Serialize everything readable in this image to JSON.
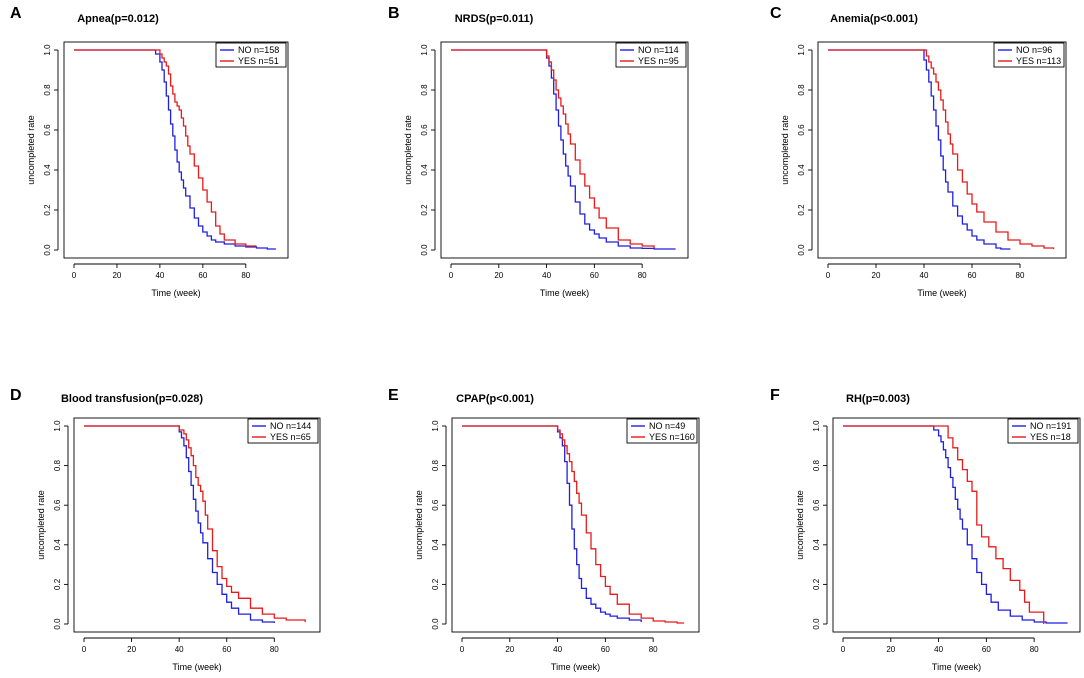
{
  "figure": {
    "x_axis_label": "Time (week)",
    "y_axis_label": "uncompleted rate"
  },
  "series_colors": {
    "NO": "#1f1fe0",
    "YES": "#e81a1a"
  },
  "chart_data": [
    {
      "panel": "A",
      "type": "line",
      "title": "Apnea(p=0.012)",
      "xlabel": "Time (week)",
      "ylabel": "uncompleted rate",
      "xlim": [
        0,
        95
      ],
      "ylim": [
        0,
        1.0
      ],
      "xticks": [
        0,
        20,
        40,
        60,
        80
      ],
      "yticks": [
        0.0,
        0.2,
        0.4,
        0.6,
        0.8,
        1.0
      ],
      "legend_position": "top-right",
      "series": [
        {
          "name": "NO n=158",
          "group": "NO",
          "x": [
            0,
            36,
            38,
            40,
            41,
            42,
            43,
            44,
            45,
            46,
            47,
            48,
            49,
            50,
            51,
            52,
            54,
            56,
            58,
            60,
            62,
            64,
            66,
            70,
            75,
            80,
            85,
            90,
            94
          ],
          "y": [
            1.0,
            1.0,
            0.98,
            0.94,
            0.9,
            0.84,
            0.77,
            0.7,
            0.63,
            0.57,
            0.5,
            0.44,
            0.39,
            0.35,
            0.31,
            0.27,
            0.21,
            0.16,
            0.12,
            0.09,
            0.07,
            0.05,
            0.04,
            0.03,
            0.02,
            0.015,
            0.01,
            0.005,
            0.005
          ]
        },
        {
          "name": "YES n=51",
          "group": "YES",
          "x": [
            0,
            38,
            40,
            41,
            42,
            43,
            44,
            45,
            46,
            47,
            48,
            49,
            50,
            51,
            52,
            53,
            54,
            56,
            58,
            60,
            62,
            64,
            66,
            68,
            70,
            75,
            80,
            85
          ],
          "y": [
            1.0,
            1.0,
            0.98,
            0.96,
            0.94,
            0.92,
            0.88,
            0.82,
            0.78,
            0.74,
            0.72,
            0.7,
            0.66,
            0.62,
            0.57,
            0.52,
            0.48,
            0.42,
            0.36,
            0.3,
            0.24,
            0.19,
            0.12,
            0.08,
            0.05,
            0.03,
            0.02,
            0.02
          ]
        }
      ]
    },
    {
      "panel": "B",
      "type": "line",
      "title": "NRDS(p=0.011)",
      "xlabel": "Time (week)",
      "ylabel": "uncompleted rate",
      "xlim": [
        0,
        95
      ],
      "ylim": [
        0,
        1.0
      ],
      "xticks": [
        0,
        20,
        40,
        60,
        80
      ],
      "yticks": [
        0.0,
        0.2,
        0.4,
        0.6,
        0.8,
        1.0
      ],
      "legend_position": "top-right",
      "series": [
        {
          "name": "NO n=114",
          "group": "NO",
          "x": [
            0,
            38,
            40,
            41,
            42,
            43,
            44,
            45,
            46,
            47,
            48,
            49,
            50,
            52,
            54,
            56,
            58,
            60,
            62,
            65,
            70,
            75,
            80,
            85,
            90,
            94
          ],
          "y": [
            1.0,
            1.0,
            0.96,
            0.92,
            0.86,
            0.78,
            0.7,
            0.62,
            0.55,
            0.48,
            0.42,
            0.37,
            0.32,
            0.24,
            0.18,
            0.13,
            0.1,
            0.08,
            0.06,
            0.04,
            0.02,
            0.01,
            0.008,
            0.005,
            0.005,
            0.005
          ]
        },
        {
          "name": "YES n=95",
          "group": "YES",
          "x": [
            0,
            38,
            40,
            41,
            42,
            43,
            44,
            45,
            46,
            47,
            48,
            49,
            50,
            52,
            54,
            56,
            58,
            60,
            62,
            65,
            70,
            75,
            80,
            85
          ],
          "y": [
            1.0,
            1.0,
            0.97,
            0.94,
            0.9,
            0.85,
            0.8,
            0.76,
            0.72,
            0.68,
            0.63,
            0.58,
            0.53,
            0.45,
            0.38,
            0.32,
            0.26,
            0.21,
            0.16,
            0.11,
            0.05,
            0.03,
            0.02,
            0.01
          ]
        }
      ]
    },
    {
      "panel": "C",
      "type": "line",
      "title": "Anemia(p<0.001)",
      "xlabel": "Time (week)",
      "ylabel": "uncompleted rate",
      "xlim": [
        0,
        95
      ],
      "ylim": [
        0,
        1.0
      ],
      "xticks": [
        0,
        20,
        40,
        60,
        80
      ],
      "yticks": [
        0.0,
        0.2,
        0.4,
        0.6,
        0.8,
        1.0
      ],
      "legend_position": "top-right",
      "series": [
        {
          "name": "NO n=96",
          "group": "NO",
          "x": [
            0,
            38,
            40,
            41,
            42,
            43,
            44,
            45,
            46,
            47,
            48,
            49,
            50,
            52,
            54,
            56,
            58,
            60,
            62,
            65,
            70,
            72,
            76
          ],
          "y": [
            1.0,
            1.0,
            0.95,
            0.9,
            0.84,
            0.77,
            0.7,
            0.62,
            0.55,
            0.47,
            0.4,
            0.34,
            0.29,
            0.22,
            0.17,
            0.13,
            0.1,
            0.07,
            0.05,
            0.03,
            0.01,
            0.005,
            0.005
          ]
        },
        {
          "name": "YES n=113",
          "group": "YES",
          "x": [
            0,
            40,
            41,
            42,
            43,
            44,
            45,
            46,
            47,
            48,
            49,
            50,
            51,
            52,
            54,
            56,
            58,
            60,
            62,
            65,
            70,
            75,
            80,
            85,
            90,
            94
          ],
          "y": [
            1.0,
            1.0,
            0.97,
            0.94,
            0.91,
            0.88,
            0.84,
            0.8,
            0.75,
            0.7,
            0.64,
            0.58,
            0.53,
            0.48,
            0.4,
            0.34,
            0.28,
            0.23,
            0.19,
            0.14,
            0.09,
            0.05,
            0.03,
            0.02,
            0.01,
            0.005
          ]
        }
      ]
    },
    {
      "panel": "D",
      "type": "line",
      "title": "Blood transfusion(p=0.028)",
      "xlabel": "Time (week)",
      "ylabel": "uncompleted rate",
      "xlim": [
        0,
        95
      ],
      "ylim": [
        0,
        1.0
      ],
      "xticks": [
        0,
        20,
        40,
        60,
        80
      ],
      "yticks": [
        0.0,
        0.2,
        0.4,
        0.6,
        0.8,
        1.0
      ],
      "legend_position": "top-right",
      "series": [
        {
          "name": "NO n=144",
          "group": "NO",
          "x": [
            0,
            38,
            40,
            41,
            42,
            43,
            44,
            45,
            46,
            47,
            48,
            49,
            50,
            52,
            54,
            56,
            58,
            60,
            62,
            65,
            70,
            75,
            80
          ],
          "y": [
            1.0,
            1.0,
            0.97,
            0.94,
            0.9,
            0.84,
            0.77,
            0.7,
            0.63,
            0.57,
            0.51,
            0.46,
            0.41,
            0.33,
            0.26,
            0.2,
            0.15,
            0.11,
            0.08,
            0.05,
            0.02,
            0.01,
            0.005
          ]
        },
        {
          "name": "YES n=65",
          "group": "YES",
          "x": [
            0,
            38,
            40,
            42,
            43,
            44,
            45,
            46,
            47,
            48,
            49,
            50,
            51,
            52,
            54,
            56,
            58,
            60,
            62,
            65,
            70,
            75,
            80,
            85,
            90,
            93
          ],
          "y": [
            1.0,
            1.0,
            0.98,
            0.96,
            0.93,
            0.89,
            0.85,
            0.8,
            0.74,
            0.7,
            0.67,
            0.62,
            0.55,
            0.48,
            0.37,
            0.29,
            0.23,
            0.19,
            0.16,
            0.13,
            0.08,
            0.05,
            0.03,
            0.02,
            0.02,
            0.01
          ]
        }
      ]
    },
    {
      "panel": "E",
      "type": "line",
      "title": "CPAP(p<0.001)",
      "xlabel": "Time (week)",
      "ylabel": "uncompleted rate",
      "xlim": [
        0,
        95
      ],
      "ylim": [
        0,
        1.0
      ],
      "xticks": [
        0,
        20,
        40,
        60,
        80
      ],
      "yticks": [
        0.0,
        0.2,
        0.4,
        0.6,
        0.8,
        1.0
      ],
      "legend_position": "top-right",
      "series": [
        {
          "name": "NO n=49",
          "group": "NO",
          "x": [
            0,
            38,
            40,
            41,
            42,
            43,
            44,
            45,
            46,
            47,
            48,
            49,
            50,
            52,
            54,
            56,
            58,
            60,
            62,
            65,
            70,
            75
          ],
          "y": [
            1.0,
            1.0,
            0.97,
            0.94,
            0.9,
            0.82,
            0.71,
            0.6,
            0.48,
            0.38,
            0.3,
            0.23,
            0.18,
            0.13,
            0.1,
            0.08,
            0.06,
            0.05,
            0.04,
            0.03,
            0.02,
            0.01
          ]
        },
        {
          "name": "YES n=160",
          "group": "YES",
          "x": [
            0,
            38,
            40,
            41,
            42,
            43,
            44,
            45,
            46,
            47,
            48,
            49,
            50,
            52,
            54,
            56,
            58,
            60,
            62,
            65,
            70,
            75,
            80,
            85,
            90,
            93
          ],
          "y": [
            1.0,
            1.0,
            0.98,
            0.96,
            0.93,
            0.9,
            0.86,
            0.82,
            0.77,
            0.72,
            0.66,
            0.61,
            0.55,
            0.46,
            0.38,
            0.3,
            0.24,
            0.19,
            0.15,
            0.1,
            0.05,
            0.03,
            0.015,
            0.01,
            0.005,
            0.005
          ]
        }
      ]
    },
    {
      "panel": "F",
      "type": "line",
      "title": "RH(p=0.003)",
      "xlabel": "Time (week)",
      "ylabel": "uncompleted rate",
      "xlim": [
        0,
        95
      ],
      "ylim": [
        0,
        1.0
      ],
      "xticks": [
        0,
        20,
        40,
        60,
        80
      ],
      "yticks": [
        0.0,
        0.2,
        0.4,
        0.6,
        0.8,
        1.0
      ],
      "legend_position": "top-right",
      "series": [
        {
          "name": "NO n=191",
          "group": "NO",
          "x": [
            0,
            36,
            38,
            40,
            41,
            42,
            43,
            44,
            45,
            46,
            47,
            48,
            49,
            50,
            52,
            54,
            56,
            58,
            60,
            62,
            65,
            70,
            75,
            80,
            85,
            90,
            94
          ],
          "y": [
            1.0,
            1.0,
            0.98,
            0.95,
            0.92,
            0.88,
            0.84,
            0.79,
            0.74,
            0.69,
            0.63,
            0.58,
            0.53,
            0.48,
            0.4,
            0.33,
            0.26,
            0.2,
            0.15,
            0.11,
            0.07,
            0.04,
            0.02,
            0.01,
            0.005,
            0.005,
            0.005
          ]
        },
        {
          "name": "YES n=18",
          "group": "YES",
          "x": [
            0,
            42,
            44,
            46,
            48,
            50,
            52,
            54,
            56,
            58,
            61,
            64,
            67,
            70,
            74,
            76,
            78,
            84
          ],
          "y": [
            1.0,
            1.0,
            0.94,
            0.89,
            0.83,
            0.78,
            0.72,
            0.67,
            0.5,
            0.44,
            0.39,
            0.33,
            0.28,
            0.22,
            0.17,
            0.11,
            0.06,
            0.0
          ]
        }
      ]
    }
  ]
}
